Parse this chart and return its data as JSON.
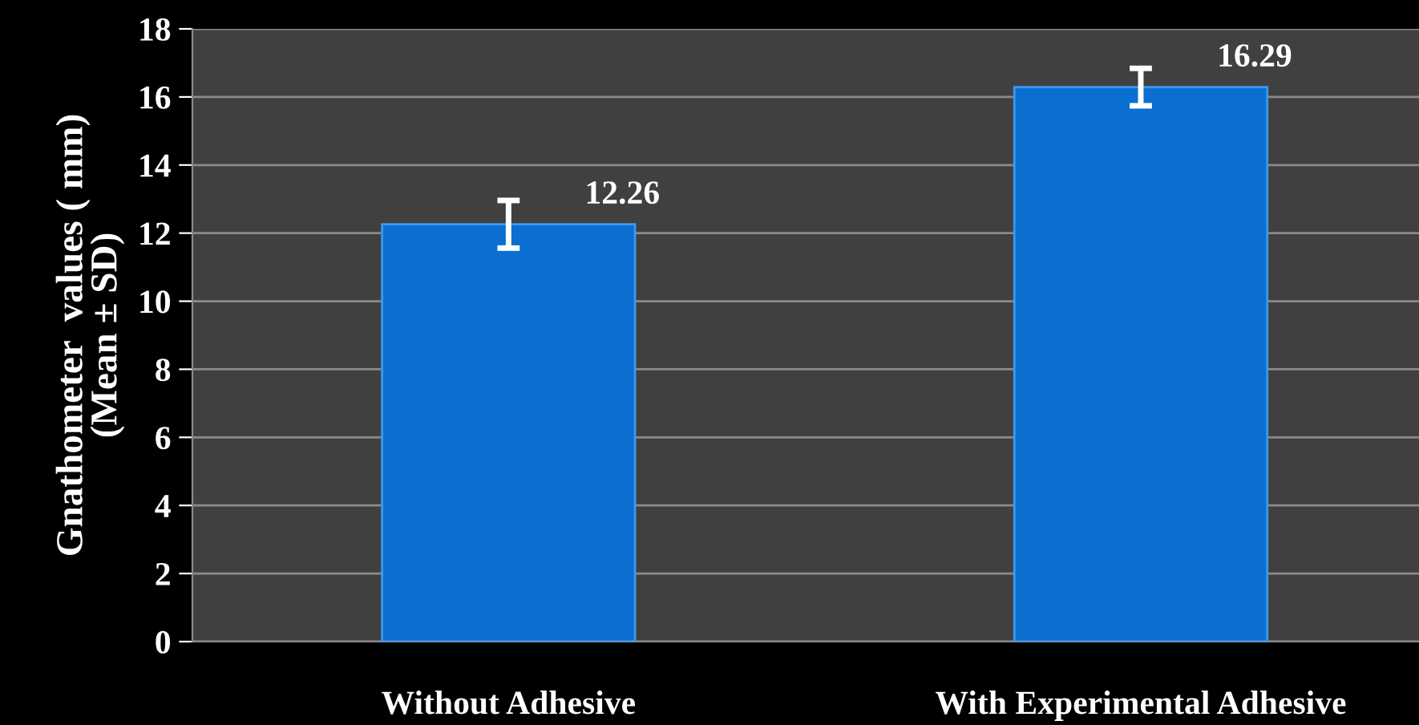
{
  "chart_data": {
    "type": "bar",
    "ylabel": "Gnathometer  values ( mm)\n(Mean ± SD)",
    "categories": [
      "Without Adhesive",
      "With Experimental Adhesive"
    ],
    "values": [
      12.26,
      16.29
    ],
    "errors": [
      0.7,
      0.55
    ],
    "color": "#0a6fd0",
    "ylim": [
      0,
      18
    ],
    "yticks": [
      0,
      2,
      4,
      6,
      8,
      10,
      12,
      14,
      16,
      18
    ],
    "grid": "y",
    "data_labels": true,
    "legend": false
  }
}
